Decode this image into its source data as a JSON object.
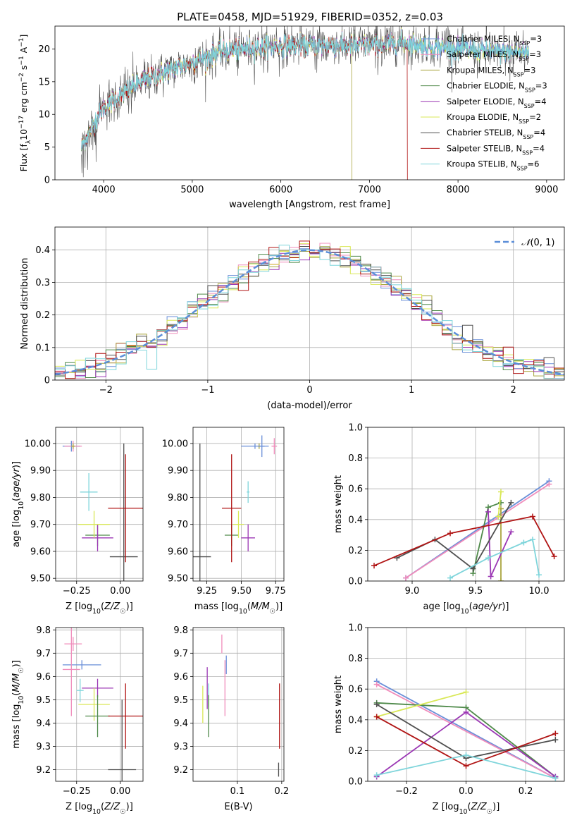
{
  "title": "PLATE=0458, MJD=51929, FIBERID=0352, z=0.03",
  "colors": {
    "models": [
      "#6a8fd8",
      "#f08cbb",
      "#a9a53f",
      "#4f8a4a",
      "#9b37b4",
      "#d9e857",
      "#505050",
      "#b01414",
      "#7fd5db"
    ],
    "gauss": "#5b8ed8",
    "grid": "#b0b0b0"
  },
  "chart_data": [
    {
      "id": "spectrum",
      "type": "line",
      "xlabel": "wavelength [Angstrom, rest frame]",
      "ylabel": "Flux [f$_\\lambda$10$^{-17}$ erg cm$^{-2}$ s$^{-1}$ A$^{-1}$]",
      "xlim": [
        3450,
        9200
      ],
      "ylim": [
        0,
        23.5
      ],
      "xticks": [
        4000,
        5000,
        6000,
        7000,
        8000,
        9000
      ],
      "yticks": [
        0,
        5,
        10,
        15,
        20
      ],
      "legend_loc": "upper right",
      "legend": [
        {
          "label": "Chabrier MILES, N",
          "sub": "SSP",
          "tail": "=3"
        },
        {
          "label": "Salpeter MILES, N",
          "sub": "SSP",
          "tail": "=3"
        },
        {
          "label": "Kroupa MILES, N",
          "sub": "SSP",
          "tail": "=3"
        },
        {
          "label": "Chabrier ELODIE, N",
          "sub": "SSP",
          "tail": "=3"
        },
        {
          "label": "Salpeter ELODIE, N",
          "sub": "SSP",
          "tail": "=4"
        },
        {
          "label": "Kroupa ELODIE, N",
          "sub": "SSP",
          "tail": "=2"
        },
        {
          "label": "Chabrier STELIB, N",
          "sub": "SSP",
          "tail": "=4"
        },
        {
          "label": "Salpeter STELIB, N",
          "sub": "SSP",
          "tail": "=4"
        },
        {
          "label": "Kroupa STELIB, N",
          "sub": "SSP",
          "tail": "=6"
        }
      ],
      "continuum": {
        "x": [
          3750,
          3900,
          4000,
          4100,
          4300,
          4500,
          4800,
          5000,
          5300,
          5600,
          6000,
          6500,
          7000,
          7400,
          7600,
          8000,
          8500,
          8800
        ],
        "y": [
          5,
          9,
          11,
          12,
          14,
          15.5,
          17,
          18,
          19.5,
          20,
          20.5,
          20.5,
          20.5,
          21,
          20.5,
          20,
          19.5,
          19.5
        ]
      },
      "cutoffs": [
        {
          "series": 2,
          "x": 6800,
          "xend": 6810
        },
        {
          "series": 7,
          "x": 7430,
          "xend": 7440
        }
      ]
    },
    {
      "id": "residuals",
      "type": "histogram",
      "xlabel": "(data-model)/error",
      "ylabel": "Normed distribution",
      "xlim": [
        -2.5,
        2.5
      ],
      "ylim": [
        0,
        0.47
      ],
      "xticks": [
        -2,
        -1,
        0,
        1,
        2
      ],
      "yticks": [
        0,
        0.1,
        0.2,
        0.3,
        0.4
      ],
      "legend_loc": "upper right",
      "legend_label": "N(0,1)",
      "bins": 50
    },
    {
      "id": "age-vs-Z",
      "type": "errorbar",
      "xlabel": "Z [log10(Z/Z☉)]",
      "ylabel": "age  [log10(age/yr)]",
      "xlim": [
        -0.37,
        0.13
      ],
      "ylim": [
        9.49,
        10.06
      ],
      "xticks": [
        -0.25,
        0.0
      ],
      "yticks": [
        9.5,
        9.6,
        9.7,
        9.8,
        9.9,
        10.0
      ],
      "points": [
        {
          "series": 0,
          "x": -0.28,
          "y": 9.99,
          "xerr": 0.05,
          "yerr": 0.02
        },
        {
          "series": 1,
          "x": -0.27,
          "y": 9.99,
          "xerr": 0.05,
          "yerr": 0.02
        },
        {
          "series": 3,
          "x": -0.13,
          "y": 9.66,
          "xerr": 0.07,
          "yerr": 0.04
        },
        {
          "series": 4,
          "x": -0.13,
          "y": 9.65,
          "xerr": 0.09,
          "yerr": 0.05
        },
        {
          "series": 5,
          "x": -0.15,
          "y": 9.7,
          "xerr": 0.09,
          "yerr": 0.05
        },
        {
          "series": 6,
          "x": 0.02,
          "y": 9.58,
          "xerr": 0.08,
          "yerr": 0.42
        },
        {
          "series": 7,
          "x": 0.03,
          "y": 9.76,
          "xerr": 0.1,
          "yerr": 0.2
        },
        {
          "series": 8,
          "x": -0.18,
          "y": 9.82,
          "xerr": 0.05,
          "yerr": 0.07
        },
        {
          "series": 2,
          "x": -0.27,
          "y": 9.99,
          "xerr": 0.01,
          "yerr": 0.01
        }
      ]
    },
    {
      "id": "age-vs-mass",
      "type": "errorbar",
      "xlabel": "mass [log10(M/M☉)]",
      "ylabel": "",
      "xlim": [
        9.15,
        9.81
      ],
      "ylim": [
        9.49,
        10.06
      ],
      "xticks": [
        9.25,
        9.5,
        9.75
      ],
      "yticks": [
        9.5,
        9.6,
        9.7,
        9.8,
        9.9,
        10.0
      ],
      "points": [
        {
          "series": 0,
          "x": 9.65,
          "y": 9.99,
          "xerr": 0.02,
          "yerr": 0.04
        },
        {
          "series": 1,
          "x": 9.74,
          "y": 9.99,
          "xerr": 0.02,
          "yerr": 0.03
        },
        {
          "series": 2,
          "x": 9.63,
          "y": 9.99,
          "xerr": 0.01,
          "yerr": 0.01
        },
        {
          "series": 3,
          "x": 9.43,
          "y": 9.66,
          "xerr": 0.05,
          "yerr": 0.04
        },
        {
          "series": 4,
          "x": 9.55,
          "y": 9.65,
          "xerr": 0.05,
          "yerr": 0.05
        },
        {
          "series": 5,
          "x": 9.48,
          "y": 9.7,
          "xerr": 0.04,
          "yerr": 0.05
        },
        {
          "series": 6,
          "x": 9.2,
          "y": 9.58,
          "xerr": 0.08,
          "yerr": 0.42
        },
        {
          "series": 7,
          "x": 9.43,
          "y": 9.76,
          "xerr": 0.07,
          "yerr": 0.2
        },
        {
          "series": 8,
          "x": 9.55,
          "y": 9.82,
          "xerr": 0.01,
          "yerr": 0.04
        },
        {
          "series": 0,
          "x": 9.6,
          "y": 9.99,
          "xerr": 0.1,
          "yerr": 0.01
        }
      ]
    },
    {
      "id": "massweight-vs-age",
      "type": "line",
      "xlabel": "age  [log10(age/yr)]",
      "ylabel": "mass weight",
      "xlim": [
        8.65,
        10.2
      ],
      "ylim": [
        0,
        1.0
      ],
      "xticks": [
        9.0,
        9.5,
        10.0
      ],
      "yticks": [
        0,
        0.2,
        0.4,
        0.6,
        0.8,
        1.0
      ],
      "series": [
        {
          "series": 0,
          "x": [
            8.95,
            10.08
          ],
          "y": [
            0.02,
            0.65
          ]
        },
        {
          "series": 1,
          "x": [
            8.95,
            10.08
          ],
          "y": [
            0.02,
            0.63
          ]
        },
        {
          "series": 2,
          "x": [
            9.7,
            9.7
          ],
          "y": [
            0.0,
            0.47
          ]
        },
        {
          "series": 3,
          "x": [
            9.48,
            9.6,
            9.7
          ],
          "y": [
            0.05,
            0.48,
            0.51
          ]
        },
        {
          "series": 4,
          "x": [
            9.6,
            9.62,
            9.78
          ],
          "y": [
            0.45,
            0.03,
            0.32
          ]
        },
        {
          "series": 5,
          "x": [
            9.68,
            9.7
          ],
          "y": [
            0.42,
            0.58
          ]
        },
        {
          "series": 6,
          "x": [
            8.88,
            9.18,
            9.48,
            9.78
          ],
          "y": [
            0.15,
            0.27,
            0.08,
            0.51
          ]
        },
        {
          "series": 7,
          "x": [
            8.7,
            9.3,
            9.95,
            10.12
          ],
          "y": [
            0.1,
            0.31,
            0.42,
            0.16
          ]
        },
        {
          "series": 8,
          "x": [
            9.3,
            9.6,
            9.88,
            9.95,
            10.0
          ],
          "y": [
            0.02,
            0.15,
            0.25,
            0.27,
            0.04
          ]
        }
      ]
    },
    {
      "id": "mass-vs-Z",
      "type": "errorbar",
      "xlabel": "Z [log10(Z/Z☉)]",
      "ylabel": "mass [log10(M/M☉)]",
      "xlim": [
        -0.37,
        0.13
      ],
      "ylim": [
        9.15,
        9.81
      ],
      "xticks": [
        -0.25,
        0.0
      ],
      "yticks": [
        9.2,
        9.3,
        9.4,
        9.5,
        9.6,
        9.7,
        9.8
      ],
      "points": [
        {
          "series": 1,
          "x": -0.27,
          "y": 9.74,
          "xerr": 0.05,
          "yerr": 0.03
        },
        {
          "series": 0,
          "x": -0.22,
          "y": 9.65,
          "xerr": 0.11,
          "yerr": 0.02
        },
        {
          "series": 1,
          "x": -0.28,
          "y": 9.63,
          "xerr": 0.05,
          "yerr": 0.2
        },
        {
          "series": 8,
          "x": -0.23,
          "y": 9.54,
          "xerr": 0.02,
          "yerr": 0.05
        },
        {
          "series": 4,
          "x": -0.13,
          "y": 9.55,
          "xerr": 0.09,
          "yerr": 0.04
        },
        {
          "series": 5,
          "x": -0.15,
          "y": 9.48,
          "xerr": 0.09,
          "yerr": 0.07
        },
        {
          "series": 3,
          "x": -0.13,
          "y": 9.43,
          "xerr": 0.07,
          "yerr": 0.09
        },
        {
          "series": 7,
          "x": 0.03,
          "y": 9.43,
          "xerr": 0.1,
          "yerr": 0.14
        },
        {
          "series": 6,
          "x": 0.01,
          "y": 9.2,
          "xerr": 0.08,
          "yerr": 0.3
        }
      ]
    },
    {
      "id": "mass-vs-EBV",
      "type": "errorbar",
      "xlabel": "E(B-V)",
      "ylabel": "",
      "xlim": [
        0.0,
        0.205
      ],
      "ylim": [
        9.15,
        9.81
      ],
      "xticks": [
        0.1,
        0.2
      ],
      "yticks": [
        9.2,
        9.3,
        9.4,
        9.5,
        9.6,
        9.7,
        9.8
      ],
      "points": [
        {
          "series": 1,
          "x": 0.065,
          "y": 9.74,
          "xerr": 0.0,
          "yerr": 0.04
        },
        {
          "series": 0,
          "x": 0.075,
          "y": 9.65,
          "xerr": 0.0,
          "yerr": 0.04
        },
        {
          "series": 1,
          "x": 0.072,
          "y": 9.55,
          "xerr": 0.0,
          "yerr": 0.12
        },
        {
          "series": 8,
          "x": 0.035,
          "y": 9.52,
          "xerr": 0.0,
          "yerr": 0.05
        },
        {
          "series": 4,
          "x": 0.032,
          "y": 9.55,
          "xerr": 0.0,
          "yerr": 0.09
        },
        {
          "series": 5,
          "x": 0.022,
          "y": 9.48,
          "xerr": 0.0,
          "yerr": 0.08
        },
        {
          "series": 3,
          "x": 0.035,
          "y": 9.43,
          "xerr": 0.0,
          "yerr": 0.09
        },
        {
          "series": 7,
          "x": 0.195,
          "y": 9.43,
          "xerr": 0.0,
          "yerr": 0.14
        },
        {
          "series": 6,
          "x": 0.193,
          "y": 9.2,
          "xerr": 0.0,
          "yerr": 0.03
        }
      ]
    },
    {
      "id": "massweight-vs-Z",
      "type": "line",
      "xlabel": "Z [log10(Z/Z☉)]",
      "ylabel": "mass weight",
      "xlim": [
        -0.33,
        0.33
      ],
      "ylim": [
        0,
        1.0
      ],
      "xticks": [
        -0.2,
        0.0,
        0.2
      ],
      "yticks": [
        0,
        0.2,
        0.4,
        0.6,
        0.8,
        1.0
      ],
      "series": [
        {
          "series": 0,
          "x": [
            -0.3,
            0.3
          ],
          "y": [
            0.65,
            0.02
          ]
        },
        {
          "series": 1,
          "x": [
            -0.3,
            0.3
          ],
          "y": [
            0.63,
            0.02
          ]
        },
        {
          "series": 3,
          "x": [
            -0.3,
            0.0,
            0.3
          ],
          "y": [
            0.51,
            0.48,
            0.03
          ]
        },
        {
          "series": 4,
          "x": [
            -0.3,
            0.0,
            0.3
          ],
          "y": [
            0.03,
            0.45,
            0.03
          ]
        },
        {
          "series": 5,
          "x": [
            -0.3,
            0.0
          ],
          "y": [
            0.42,
            0.58
          ]
        },
        {
          "series": 6,
          "x": [
            -0.3,
            0.0,
            0.3
          ],
          "y": [
            0.5,
            0.15,
            0.27
          ]
        },
        {
          "series": 7,
          "x": [
            -0.3,
            0.0,
            0.3
          ],
          "y": [
            0.42,
            0.1,
            0.31
          ]
        },
        {
          "series": 8,
          "x": [
            -0.3,
            0.0,
            0.3
          ],
          "y": [
            0.04,
            0.17,
            0.02
          ]
        }
      ]
    }
  ]
}
